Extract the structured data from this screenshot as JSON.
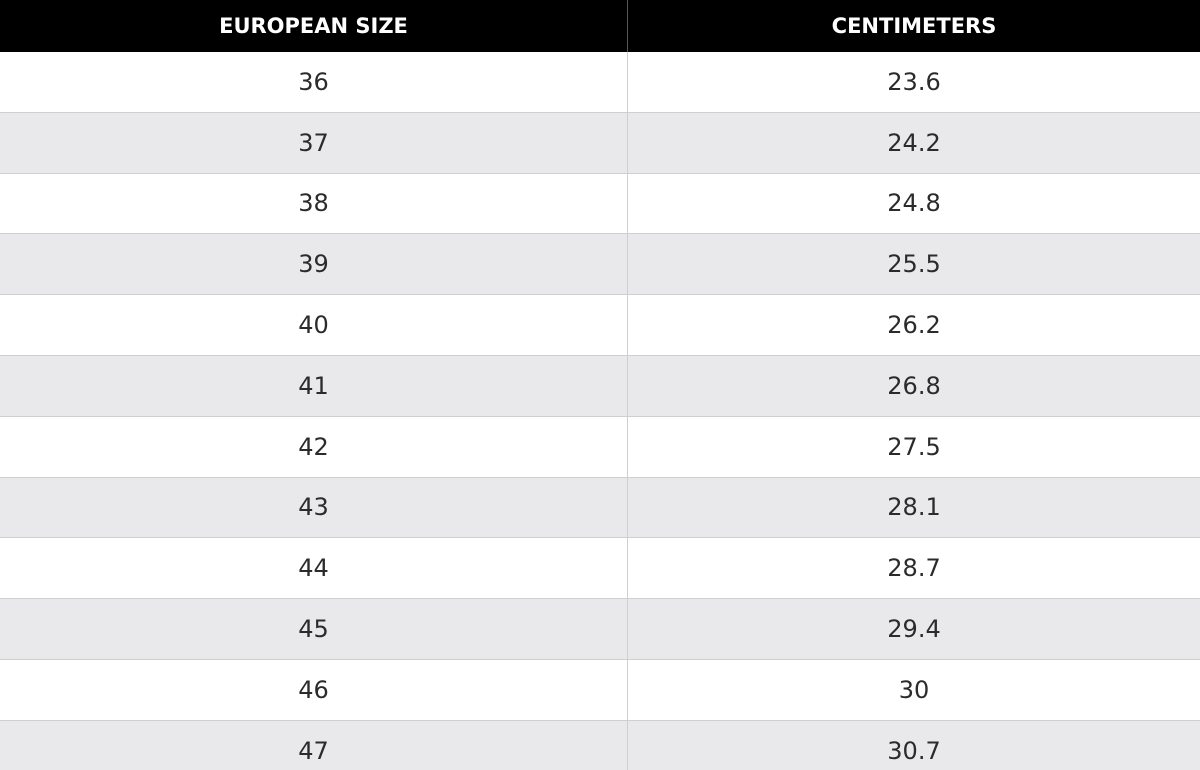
{
  "table": {
    "header": [
      "EUROPEAN SIZE",
      "CENTIMETERS"
    ],
    "rows": [
      [
        "36",
        "23.6"
      ],
      [
        "37",
        "24.2"
      ],
      [
        "38",
        "24.8"
      ],
      [
        "39",
        "25.5"
      ],
      [
        "40",
        "26.2"
      ],
      [
        "41",
        "26.8"
      ],
      [
        "42",
        "27.5"
      ],
      [
        "43",
        "28.1"
      ],
      [
        "44",
        "28.7"
      ],
      [
        "45",
        "29.4"
      ],
      [
        "46",
        "30"
      ],
      [
        "47",
        "30.7"
      ]
    ]
  }
}
